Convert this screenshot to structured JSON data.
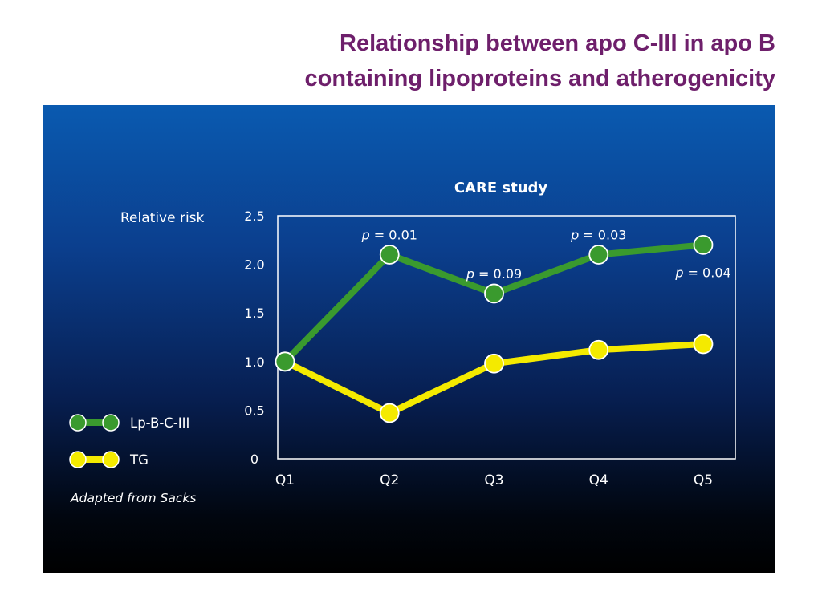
{
  "slide": {
    "title_line1": "Relationship between apo C-III in apo B",
    "title_line2": "containing lipoproteins and atherogenicity"
  },
  "colors": {
    "title": "#6e1f6b",
    "lp_series": "#3a9a2e",
    "tg_series": "#f4ea00",
    "axis": "#ffffff"
  },
  "chart_data": {
    "type": "line",
    "title": "CARE study",
    "ylabel": "Relative risk",
    "xlabel": "",
    "categories": [
      "Q1",
      "Q2",
      "Q3",
      "Q4",
      "Q5"
    ],
    "ylim": [
      0,
      2.5
    ],
    "yticks": [
      "0",
      "0.5",
      "1.0",
      "1.5",
      "2.0",
      "2.5"
    ],
    "grid": false,
    "legend_position": "bottom-left outside",
    "series": [
      {
        "name": "Lp-B-C-III",
        "color": "#3a9a2e",
        "values": [
          1.0,
          2.1,
          1.7,
          2.1,
          2.2
        ],
        "p_labels": [
          {
            "category": "Q2",
            "p": "p",
            "rest": " = 0.01",
            "placement": "above"
          },
          {
            "category": "Q3",
            "p": "p",
            "rest": " = 0.09",
            "placement": "above"
          },
          {
            "category": "Q4",
            "p": "p",
            "rest": " = 0.03",
            "placement": "above"
          },
          {
            "category": "Q5",
            "p": "p",
            "rest": " = 0.04",
            "placement": "below"
          }
        ]
      },
      {
        "name": "TG",
        "color": "#f4ea00",
        "values": [
          1.0,
          0.47,
          0.98,
          1.12,
          1.18
        ]
      }
    ],
    "annotations": [
      "Adapted from Sacks"
    ]
  }
}
